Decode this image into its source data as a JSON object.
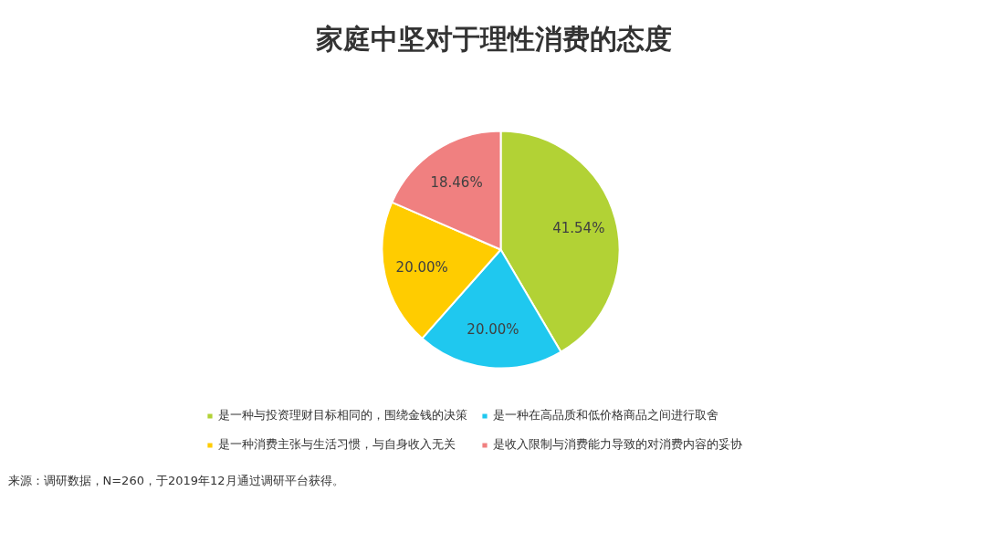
{
  "chart_data": {
    "type": "pie",
    "title": "家庭中坚对于理性消费的态度",
    "categories": [
      "是一种与投资理财目标相同的，围绕金钱的决策",
      "是一种在高品质和低价格商品之间进行取舍",
      "是一种消费主张与生活习惯，与自身收入无关",
      "是收入限制与消费能力导致的对消费内容的妥协"
    ],
    "values": [
      41.54,
      20.0,
      20.0,
      18.46
    ],
    "value_labels": [
      "41.54%",
      "20.00%",
      "20.00%",
      "18.46%"
    ],
    "colors": [
      "#b2d235",
      "#1fc8ef",
      "#ffcc00",
      "#f08080"
    ],
    "legend": "bottom",
    "annotations": [
      "来源：调研数据，N=260，于2019年12月通过调研平台获得。"
    ]
  }
}
